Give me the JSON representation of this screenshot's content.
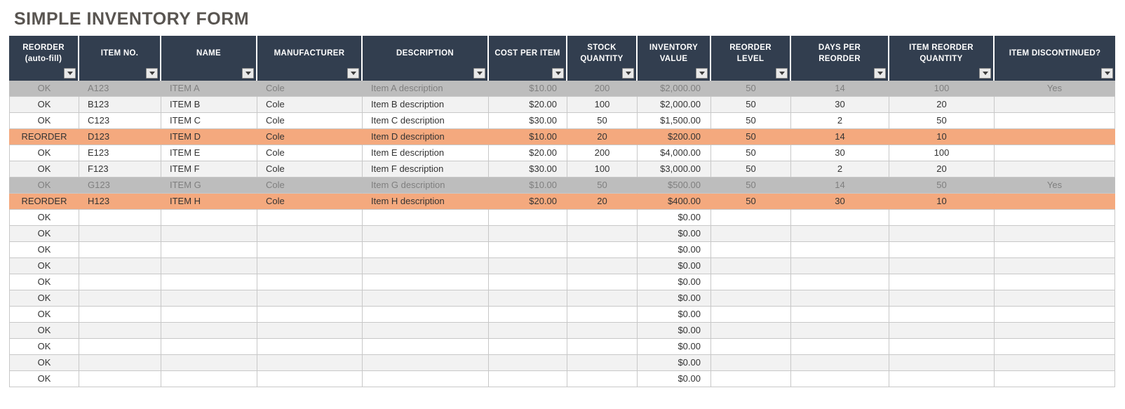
{
  "title": "SIMPLE INVENTORY FORM",
  "colors": {
    "header_bg": "#323E4F",
    "header_text": "#FFFFFF",
    "title_text": "#595551",
    "cell_text": "#333333",
    "grid_line": "#C8C8C8",
    "zebra_bg": "#F2F2F2",
    "row_discontinued_bg": "#BDBDBD",
    "row_discontinued_text": "#7F7F7F",
    "row_reorder_bg": "#F4A97E"
  },
  "icons": {
    "header_filter": "chevron-down-icon"
  },
  "table": {
    "columns": [
      {
        "key": "reorder_status",
        "label": "REORDER (auto-fill)"
      },
      {
        "key": "item_no",
        "label": "ITEM NO."
      },
      {
        "key": "name",
        "label": "NAME"
      },
      {
        "key": "manufacturer",
        "label": "MANUFACTURER"
      },
      {
        "key": "description",
        "label": "DESCRIPTION"
      },
      {
        "key": "cost_per_item",
        "label": "COST PER ITEM"
      },
      {
        "key": "stock_quantity",
        "label": "STOCK QUANTITY"
      },
      {
        "key": "inventory_value",
        "label": "INVENTORY VALUE"
      },
      {
        "key": "reorder_level",
        "label": "REORDER LEVEL"
      },
      {
        "key": "days_per_reorder",
        "label": "DAYS PER REORDER"
      },
      {
        "key": "item_reorder_qty",
        "label": "ITEM REORDER QUANTITY"
      },
      {
        "key": "item_discontinued",
        "label": "ITEM DISCONTINUED?"
      }
    ],
    "rows": [
      {
        "state": "discontinued",
        "cells": [
          "OK",
          "A123",
          "ITEM A",
          "Cole",
          "Item A description",
          "$10.00",
          "200",
          "$2,000.00",
          "50",
          "14",
          "100",
          "Yes"
        ]
      },
      {
        "state": "",
        "cells": [
          "OK",
          "B123",
          "ITEM B",
          "Cole",
          "Item B description",
          "$20.00",
          "100",
          "$2,000.00",
          "50",
          "30",
          "20",
          ""
        ]
      },
      {
        "state": "",
        "cells": [
          "OK",
          "C123",
          "ITEM C",
          "Cole",
          "Item C description",
          "$30.00",
          "50",
          "$1,500.00",
          "50",
          "2",
          "50",
          ""
        ]
      },
      {
        "state": "reorder",
        "cells": [
          "REORDER",
          "D123",
          "ITEM D",
          "Cole",
          "Item D description",
          "$10.00",
          "20",
          "$200.00",
          "50",
          "14",
          "10",
          ""
        ]
      },
      {
        "state": "",
        "cells": [
          "OK",
          "E123",
          "ITEM E",
          "Cole",
          "Item E description",
          "$20.00",
          "200",
          "$4,000.00",
          "50",
          "30",
          "100",
          ""
        ]
      },
      {
        "state": "",
        "cells": [
          "OK",
          "F123",
          "ITEM F",
          "Cole",
          "Item F description",
          "$30.00",
          "100",
          "$3,000.00",
          "50",
          "2",
          "20",
          ""
        ]
      },
      {
        "state": "discontinued",
        "cells": [
          "OK",
          "G123",
          "ITEM G",
          "Cole",
          "Item G description",
          "$10.00",
          "50",
          "$500.00",
          "50",
          "14",
          "50",
          "Yes"
        ]
      },
      {
        "state": "reorder",
        "cells": [
          "REORDER",
          "H123",
          "ITEM H",
          "Cole",
          "Item H description",
          "$20.00",
          "20",
          "$400.00",
          "50",
          "30",
          "10",
          ""
        ]
      },
      {
        "state": "",
        "cells": [
          "OK",
          "",
          "",
          "",
          "",
          "",
          "",
          "$0.00",
          "",
          "",
          "",
          ""
        ]
      },
      {
        "state": "",
        "cells": [
          "OK",
          "",
          "",
          "",
          "",
          "",
          "",
          "$0.00",
          "",
          "",
          "",
          ""
        ]
      },
      {
        "state": "",
        "cells": [
          "OK",
          "",
          "",
          "",
          "",
          "",
          "",
          "$0.00",
          "",
          "",
          "",
          ""
        ]
      },
      {
        "state": "",
        "cells": [
          "OK",
          "",
          "",
          "",
          "",
          "",
          "",
          "$0.00",
          "",
          "",
          "",
          ""
        ]
      },
      {
        "state": "",
        "cells": [
          "OK",
          "",
          "",
          "",
          "",
          "",
          "",
          "$0.00",
          "",
          "",
          "",
          ""
        ]
      },
      {
        "state": "",
        "cells": [
          "OK",
          "",
          "",
          "",
          "",
          "",
          "",
          "$0.00",
          "",
          "",
          "",
          ""
        ]
      },
      {
        "state": "",
        "cells": [
          "OK",
          "",
          "",
          "",
          "",
          "",
          "",
          "$0.00",
          "",
          "",
          "",
          ""
        ]
      },
      {
        "state": "",
        "cells": [
          "OK",
          "",
          "",
          "",
          "",
          "",
          "",
          "$0.00",
          "",
          "",
          "",
          ""
        ]
      },
      {
        "state": "",
        "cells": [
          "OK",
          "",
          "",
          "",
          "",
          "",
          "",
          "$0.00",
          "",
          "",
          "",
          ""
        ]
      },
      {
        "state": "",
        "cells": [
          "OK",
          "",
          "",
          "",
          "",
          "",
          "",
          "$0.00",
          "",
          "",
          "",
          ""
        ]
      },
      {
        "state": "",
        "cells": [
          "OK",
          "",
          "",
          "",
          "",
          "",
          "",
          "$0.00",
          "",
          "",
          "",
          ""
        ]
      }
    ]
  }
}
